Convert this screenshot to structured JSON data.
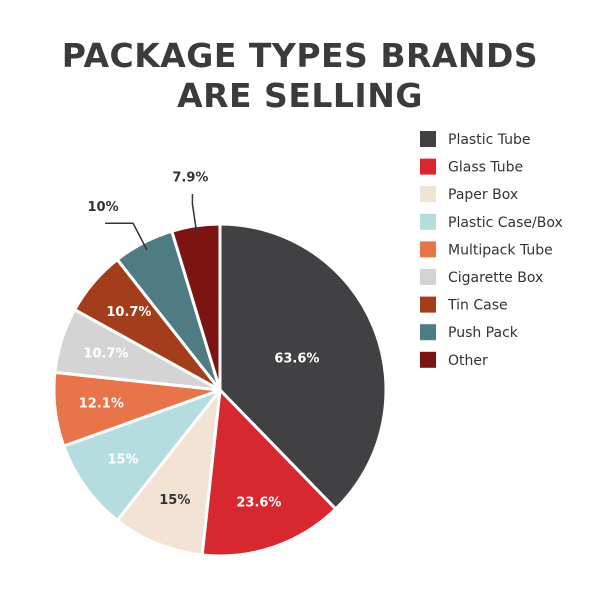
{
  "chart_data": {
    "type": "pie",
    "title": "PACKAGE TYPES BRANDS ARE SELLING",
    "categories": [
      "Plastic Tube",
      "Glass Tube",
      "Paper Box",
      "Plastic Case/Box",
      "Multipack Tube",
      "Cigarette Box",
      "Tin Case",
      "Push Pack",
      "Other"
    ],
    "values": [
      63.6,
      23.6,
      15,
      15,
      12.1,
      10.7,
      10.7,
      10,
      7.9
    ],
    "value_labels": [
      "63.6%",
      "23.6%",
      "15%",
      "15%",
      "12.1%",
      "10.7%",
      "10.7%",
      "10%",
      "7.9%"
    ],
    "colors": [
      "#414042",
      "#d7282f",
      "#f2e3d5",
      "#b5dde0",
      "#e8744a",
      "#d4d4d4",
      "#a33d1c",
      "#4f7c82",
      "#7d1414"
    ],
    "legend": "right"
  }
}
